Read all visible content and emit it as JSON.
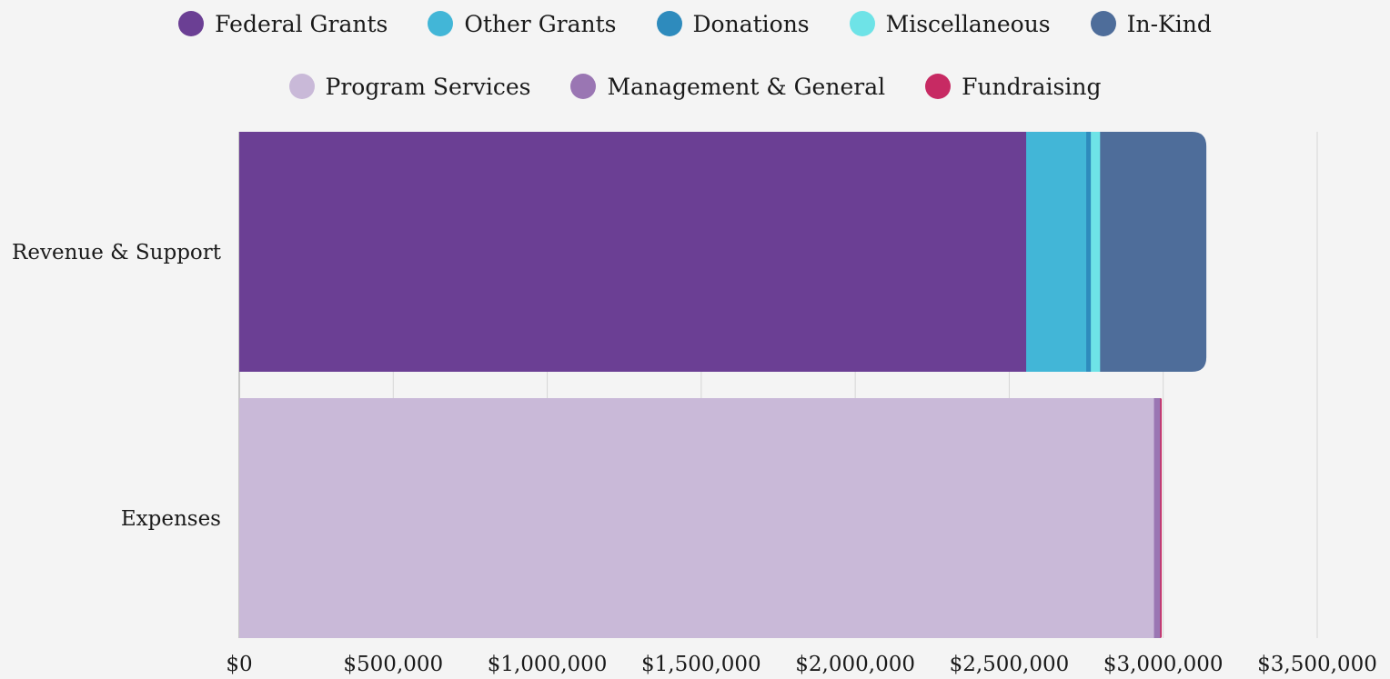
{
  "chart_data": {
    "type": "bar",
    "orientation": "horizontal",
    "stacked": true,
    "categories": [
      "Revenue & Support",
      "Expenses"
    ],
    "series": [
      {
        "name": "Federal Grants",
        "color": "#6b3f94",
        "values": [
          2555000,
          0
        ]
      },
      {
        "name": "Other Grants",
        "color": "#42b6d7",
        "values": [
          195000,
          0
        ]
      },
      {
        "name": "Donations",
        "color": "#2e8bbd",
        "values": [
          15000,
          0
        ]
      },
      {
        "name": "Miscellaneous",
        "color": "#6ee3e7",
        "values": [
          30000,
          0
        ]
      },
      {
        "name": "In-Kind",
        "color": "#4e6d9a",
        "values": [
          345000,
          0
        ]
      },
      {
        "name": "Program Services",
        "color": "#c9b9d8",
        "values": [
          0,
          2970000
        ]
      },
      {
        "name": "Management & General",
        "color": "#9a76b3",
        "values": [
          0,
          20000
        ]
      },
      {
        "name": "Fundraising",
        "color": "#c72a63",
        "values": [
          0,
          5000
        ]
      }
    ],
    "legend_rows": [
      [
        "Federal Grants",
        "Other Grants",
        "Donations",
        "Miscellaneous",
        "In-Kind"
      ],
      [
        "Program Services",
        "Management & General",
        "Fundraising"
      ]
    ],
    "legend_placement": "top",
    "x_ticks": [
      0,
      500000,
      1000000,
      1500000,
      2000000,
      2500000,
      3000000,
      3500000
    ],
    "x_tick_labels": [
      "$0",
      "$500,000",
      "$1,000,000",
      "$1,500,000",
      "$2,000,000",
      "$2,500,000",
      "$3,000,000",
      "$3,500,000"
    ],
    "xlim": [
      0,
      3500000
    ],
    "grid": true,
    "title": "",
    "xlabel": "",
    "ylabel": ""
  },
  "colors": {
    "background": "#f4f4f4",
    "gridline": "#d6d6d6",
    "text": "#1a1a1a"
  }
}
